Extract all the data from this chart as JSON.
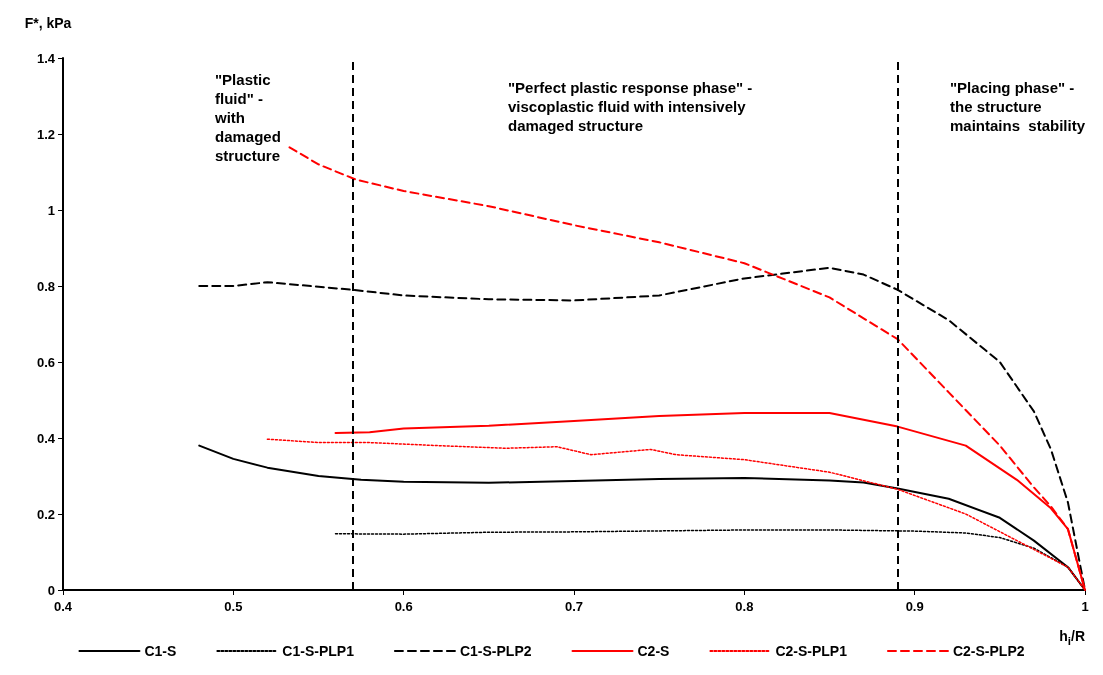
{
  "chart_data": {
    "type": "line",
    "xlabel": "h$_{i}$/R",
    "ylabel": "F*, kPa",
    "xlim": [
      0.4,
      1
    ],
    "xticks": [
      0.4,
      0.5,
      0.6,
      0.7,
      0.8,
      0.9,
      1
    ],
    "ylim": [
      0,
      1.4
    ],
    "yticks": [
      0,
      0.2,
      0.4,
      0.6,
      0.8,
      1,
      1.2,
      1.4
    ],
    "grid": false,
    "legend": "bottom",
    "marker": "none",
    "annotations": [
      "\"Plastic\nfluid\" -\nwith\ndamaged\nstructure",
      "\"Perfect plastic response phase\" -\nviscoplastic fluid with intensively\ndamaged structure",
      "\"Placing phase\" -\nthe structure\nmaintains  stability"
    ],
    "ref_lines": [
      {
        "axis": "x",
        "value": 0.572,
        "color": "#000000",
        "line_style": "dashed"
      },
      {
        "axis": "x",
        "value": 0.888,
        "color": "#000000",
        "line_style": "dashed"
      }
    ],
    "series": [
      {
        "name": "C1-S",
        "color": "#000000",
        "line_style": "solid",
        "x": [
          0.48,
          0.5,
          0.52,
          0.55,
          0.575,
          0.6,
          0.65,
          0.7,
          0.75,
          0.8,
          0.85,
          0.87,
          0.89,
          0.92,
          0.95,
          0.97,
          0.99,
          1
        ],
        "values": [
          0.38,
          0.345,
          0.322,
          0.3,
          0.29,
          0.285,
          0.282,
          0.287,
          0.292,
          0.295,
          0.288,
          0.283,
          0.267,
          0.24,
          0.19,
          0.13,
          0.06,
          0
        ]
      },
      {
        "name": "C1-S-PLP1",
        "color": "#000000",
        "line_style": "dotted",
        "x": [
          0.56,
          0.6,
          0.65,
          0.7,
          0.8,
          0.85,
          0.9,
          0.93,
          0.95,
          0.97,
          0.99,
          1
        ],
        "values": [
          0.148,
          0.147,
          0.152,
          0.153,
          0.158,
          0.158,
          0.155,
          0.15,
          0.138,
          0.11,
          0.06,
          0
        ]
      },
      {
        "name": "C1-S-PLP2",
        "color": "#000000",
        "line_style": "dashed",
        "x": [
          0.48,
          0.5,
          0.52,
          0.57,
          0.6,
          0.65,
          0.7,
          0.75,
          0.8,
          0.85,
          0.87,
          0.89,
          0.92,
          0.95,
          0.97,
          0.98,
          0.99,
          1
        ],
        "values": [
          0.8,
          0.8,
          0.81,
          0.79,
          0.775,
          0.765,
          0.762,
          0.775,
          0.82,
          0.848,
          0.83,
          0.79,
          0.71,
          0.6,
          0.47,
          0.37,
          0.23,
          0
        ]
      },
      {
        "name": "C2-S",
        "color": "#ff0000",
        "line_style": "solid",
        "x": [
          0.56,
          0.58,
          0.6,
          0.65,
          0.7,
          0.75,
          0.8,
          0.85,
          0.89,
          0.93,
          0.96,
          0.98,
          0.99,
          1
        ],
        "values": [
          0.413,
          0.415,
          0.425,
          0.432,
          0.445,
          0.458,
          0.466,
          0.466,
          0.43,
          0.38,
          0.29,
          0.215,
          0.16,
          0
        ]
      },
      {
        "name": "C2-S-PLP1",
        "color": "#ff0000",
        "line_style": "dotted",
        "x": [
          0.52,
          0.55,
          0.58,
          0.62,
          0.66,
          0.69,
          0.71,
          0.745,
          0.76,
          0.8,
          0.85,
          0.89,
          0.93,
          0.96,
          0.99,
          1
        ],
        "values": [
          0.397,
          0.388,
          0.388,
          0.38,
          0.373,
          0.377,
          0.356,
          0.37,
          0.356,
          0.343,
          0.31,
          0.265,
          0.2,
          0.13,
          0.06,
          0
        ]
      },
      {
        "name": "C2-S-PLP2",
        "color": "#ff0000",
        "line_style": "dashed",
        "x": [
          0.533,
          0.55,
          0.572,
          0.6,
          0.65,
          0.7,
          0.75,
          0.8,
          0.85,
          0.89,
          0.92,
          0.95,
          0.97,
          0.98,
          0.99,
          1
        ],
        "values": [
          1.165,
          1.12,
          1.08,
          1.05,
          1.01,
          0.96,
          0.915,
          0.86,
          0.77,
          0.66,
          0.52,
          0.38,
          0.27,
          0.22,
          0.16,
          0
        ]
      }
    ]
  }
}
